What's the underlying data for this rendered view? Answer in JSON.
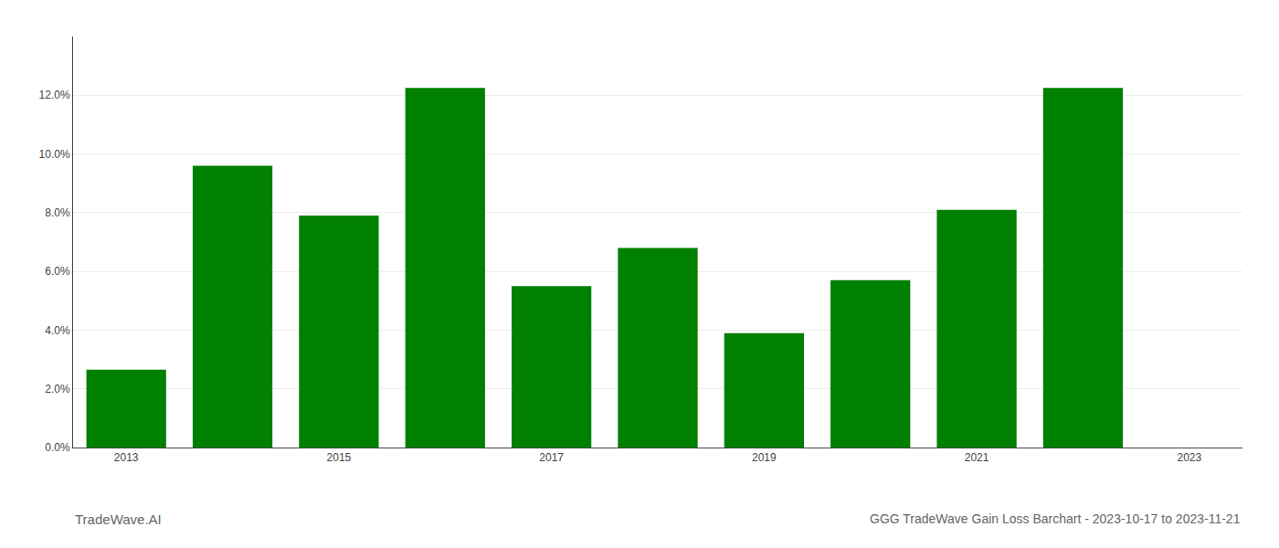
{
  "chart_data": {
    "type": "bar",
    "title": "GGG TradeWave Gain Loss Barchart - 2023-10-17 to 2023-11-21",
    "annotations": [
      "TradeWave.AI"
    ],
    "x": [
      2013,
      2014,
      2015,
      2016,
      2017,
      2018,
      2019,
      2020,
      2021,
      2022
    ],
    "values": [
      0.0265,
      0.096,
      0.079,
      0.1225,
      0.055,
      0.068,
      0.039,
      0.057,
      0.081,
      0.1225
    ],
    "color": "#008000",
    "xlim": [
      2012.5,
      2023.5
    ],
    "xticks": [
      2013,
      2015,
      2017,
      2019,
      2021,
      2023
    ],
    "ylim": [
      0,
      0.14
    ],
    "yticks": [
      {
        "value": 0.0,
        "label": "0.0%"
      },
      {
        "value": 0.02,
        "label": "2.0%"
      },
      {
        "value": 0.04,
        "label": "4.0%"
      },
      {
        "value": 0.06,
        "label": "6.0%"
      },
      {
        "value": 0.08,
        "label": "8.0%"
      },
      {
        "value": 0.1,
        "label": "10.0%"
      },
      {
        "value": 0.12,
        "label": "12.0%"
      }
    ],
    "grid": true
  }
}
